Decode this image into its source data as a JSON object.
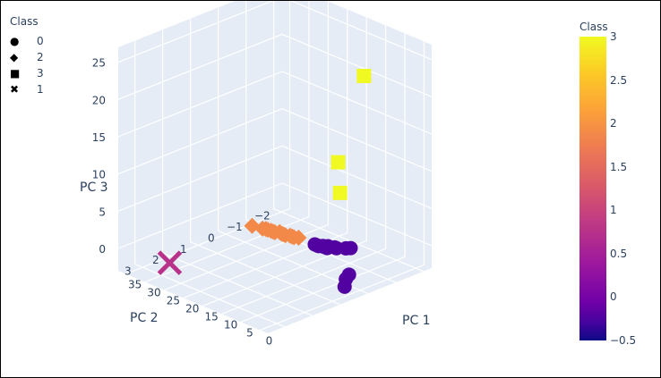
{
  "legend": {
    "title": "Class",
    "items": [
      {
        "symbol": "●",
        "label": "0",
        "icon": "circle-icon"
      },
      {
        "symbol": "◆",
        "label": "2",
        "icon": "diamond-icon"
      },
      {
        "symbol": "■",
        "label": "3",
        "icon": "square-icon"
      },
      {
        "symbol": "✖",
        "label": "1",
        "icon": "x-icon"
      }
    ]
  },
  "colorbar": {
    "title": "Class",
    "ticks": [
      {
        "value": 3,
        "label": "3"
      },
      {
        "value": 2.5,
        "label": "2.5"
      },
      {
        "value": 2,
        "label": "2"
      },
      {
        "value": 1.5,
        "label": "1.5"
      },
      {
        "value": 1,
        "label": "1"
      },
      {
        "value": 0.5,
        "label": "0.5"
      },
      {
        "value": 0,
        "label": "0"
      },
      {
        "value": -0.5,
        "label": "−0.5"
      }
    ],
    "range": [
      -0.5,
      3
    ]
  },
  "chart_data": {
    "type": "scatter",
    "dimensions": 3,
    "axes": {
      "x": {
        "title": "PC 1",
        "ticks": [
          0,
          5,
          10,
          15,
          20,
          25,
          30,
          35
        ],
        "range": [
          -2,
          37
        ]
      },
      "y": {
        "title": "PC 2",
        "ticks": [
          -2,
          -1,
          0,
          1,
          2,
          3
        ],
        "range": [
          -2.3,
          3.6
        ]
      },
      "z": {
        "title": "PC 3",
        "ticks": [
          0,
          5,
          10,
          15,
          20,
          25
        ],
        "range": [
          -3,
          27
        ]
      }
    },
    "grid": true,
    "legend_placement": "top-left",
    "colors": {
      "class0": "#5b02a3",
      "class1": "#b73779",
      "class2": "#f48849",
      "class3": "#f0f921"
    },
    "series": [
      {
        "class": "0",
        "color_value": 0,
        "symbol": "circle",
        "points": [
          [
            0,
            0.4,
            -0.3
          ],
          [
            3,
            0.1,
            -2
          ],
          [
            5.5,
            -0.2,
            -4
          ],
          [
            9,
            -0.9,
            -0.6
          ],
          [
            9.5,
            -0.8,
            -0.6
          ],
          [
            10.5,
            -0.6,
            -0.5
          ],
          [
            11,
            -0.6,
            -0.5
          ],
          [
            11.5,
            -0.4,
            -0.4
          ],
          [
            12,
            -0.5,
            -0.4
          ],
          [
            12.3,
            -0.4,
            -0.4
          ],
          [
            12.6,
            -0.4,
            -0.35
          ],
          [
            13,
            -0.3,
            -0.3
          ],
          [
            13.4,
            -0.3,
            -0.3
          ],
          [
            14,
            -0.3,
            -0.3
          ]
        ]
      },
      {
        "class": "1",
        "color_value": 1,
        "symbol": "x",
        "points": [
          [
            33,
            2.3,
            -3
          ]
        ]
      },
      {
        "class": "2",
        "color_value": 2,
        "symbol": "diamond",
        "points": [
          [
            26,
            0.3,
            0.5
          ],
          [
            24,
            0.2,
            0.4
          ],
          [
            23.5,
            0.15,
            0.4
          ],
          [
            23,
            0.15,
            0.4
          ],
          [
            22.5,
            0.1,
            0.3
          ],
          [
            22,
            0.1,
            0.3
          ],
          [
            21.5,
            0.1,
            0.3
          ],
          [
            21,
            0,
            0.3
          ],
          [
            20.5,
            0,
            0.2
          ],
          [
            20,
            0,
            0.2
          ],
          [
            19.5,
            0,
            0.2
          ],
          [
            19,
            -0.1,
            0.1
          ],
          [
            18.5,
            -0.1,
            0.1
          ],
          [
            18,
            -0.1,
            0.1
          ],
          [
            17.5,
            -0.2,
            0
          ]
        ]
      },
      {
        "class": "3",
        "color_value": 3,
        "symbol": "square",
        "points": [
          [
            -1,
            0,
            26
          ],
          [
            -1.5,
            1,
            16
          ],
          [
            -2,
            1,
            12
          ]
        ]
      }
    ]
  }
}
